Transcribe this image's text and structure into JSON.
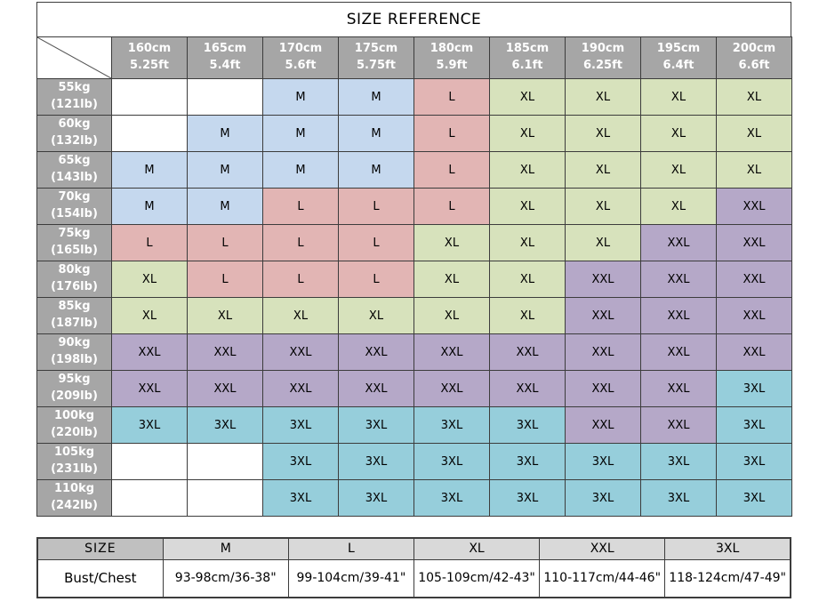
{
  "title": "SIZE REFERENCE",
  "colors": {
    "border": "#3c3c3c",
    "header_bg": "#a6a6a6",
    "header_text": "#ffffff",
    "measure_size_header_bg": "#c0c0c0",
    "measure_header_bg": "#d9d9d9",
    "diagonal_line": "#555555"
  },
  "size_colors": {
    "M": "#c5d8ee",
    "L": "#e2b5b4",
    "XL": "#d7e2bc",
    "XXL": "#b5a8c8",
    "3XL": "#96cedb",
    "empty": "#ffffff"
  },
  "size_chart": {
    "height_headers": [
      {
        "cm": "160cm",
        "ft": "5.25ft"
      },
      {
        "cm": "165cm",
        "ft": "5.4ft"
      },
      {
        "cm": "170cm",
        "ft": "5.6ft"
      },
      {
        "cm": "175cm",
        "ft": "5.75ft"
      },
      {
        "cm": "180cm",
        "ft": "5.9ft"
      },
      {
        "cm": "185cm",
        "ft": "6.1ft"
      },
      {
        "cm": "190cm",
        "ft": "6.25ft"
      },
      {
        "cm": "195cm",
        "ft": "6.4ft"
      },
      {
        "cm": "200cm",
        "ft": "6.6ft"
      }
    ],
    "rows": [
      {
        "weight": "55kg",
        "lb": "(121lb)",
        "cells": [
          "",
          "",
          "M",
          "M",
          "L",
          "XL",
          "XL",
          "XL",
          "XL"
        ]
      },
      {
        "weight": "60kg",
        "lb": "(132lb)",
        "cells": [
          "",
          "M",
          "M",
          "M",
          "L",
          "XL",
          "XL",
          "XL",
          "XL"
        ]
      },
      {
        "weight": "65kg",
        "lb": "(143lb)",
        "cells": [
          "M",
          "M",
          "M",
          "M",
          "L",
          "XL",
          "XL",
          "XL",
          "XL"
        ]
      },
      {
        "weight": "70kg",
        "lb": "(154lb)",
        "cells": [
          "M",
          "M",
          "L",
          "L",
          "L",
          "XL",
          "XL",
          "XL",
          "XXL"
        ]
      },
      {
        "weight": "75kg",
        "lb": "(165lb)",
        "cells": [
          "L",
          "L",
          "L",
          "L",
          "XL",
          "XL",
          "XL",
          "XXL",
          "XXL"
        ]
      },
      {
        "weight": "80kg",
        "lb": "(176lb)",
        "cells": [
          "XL",
          "L",
          "L",
          "L",
          "XL",
          "XL",
          "XXL",
          "XXL",
          "XXL"
        ]
      },
      {
        "weight": "85kg",
        "lb": "(187lb)",
        "cells": [
          "XL",
          "XL",
          "XL",
          "XL",
          "XL",
          "XL",
          "XXL",
          "XXL",
          "XXL"
        ]
      },
      {
        "weight": "90kg",
        "lb": "(198lb)",
        "cells": [
          "XXL",
          "XXL",
          "XXL",
          "XXL",
          "XXL",
          "XXL",
          "XXL",
          "XXL",
          "XXL"
        ]
      },
      {
        "weight": "95kg",
        "lb": "(209lb)",
        "cells": [
          "XXL",
          "XXL",
          "XXL",
          "XXL",
          "XXL",
          "XXL",
          "XXL",
          "XXL",
          "3XL"
        ]
      },
      {
        "weight": "100kg",
        "lb": "(220lb)",
        "cells": [
          "3XL",
          "3XL",
          "3XL",
          "3XL",
          "3XL",
          "3XL",
          "XXL",
          "XXL",
          "3XL"
        ]
      },
      {
        "weight": "105kg",
        "lb": "(231lb)",
        "cells": [
          "",
          "",
          "3XL",
          "3XL",
          "3XL",
          "3XL",
          "3XL",
          "3XL",
          "3XL"
        ]
      },
      {
        "weight": "110kg",
        "lb": "(242lb)",
        "cells": [
          "",
          "",
          "3XL",
          "3XL",
          "3XL",
          "3XL",
          "3XL",
          "3XL",
          "3XL"
        ]
      }
    ]
  },
  "measurement_table": {
    "headers": [
      "SIZE",
      "M",
      "L",
      "XL",
      "XXL",
      "3XL"
    ],
    "row_label": "Bust/Chest",
    "values": [
      "93-98cm/36-38\"",
      "99-104cm/39-41\"",
      "105-109cm/42-43\"",
      "110-117cm/44-46\"",
      "118-124cm/47-49\""
    ]
  }
}
